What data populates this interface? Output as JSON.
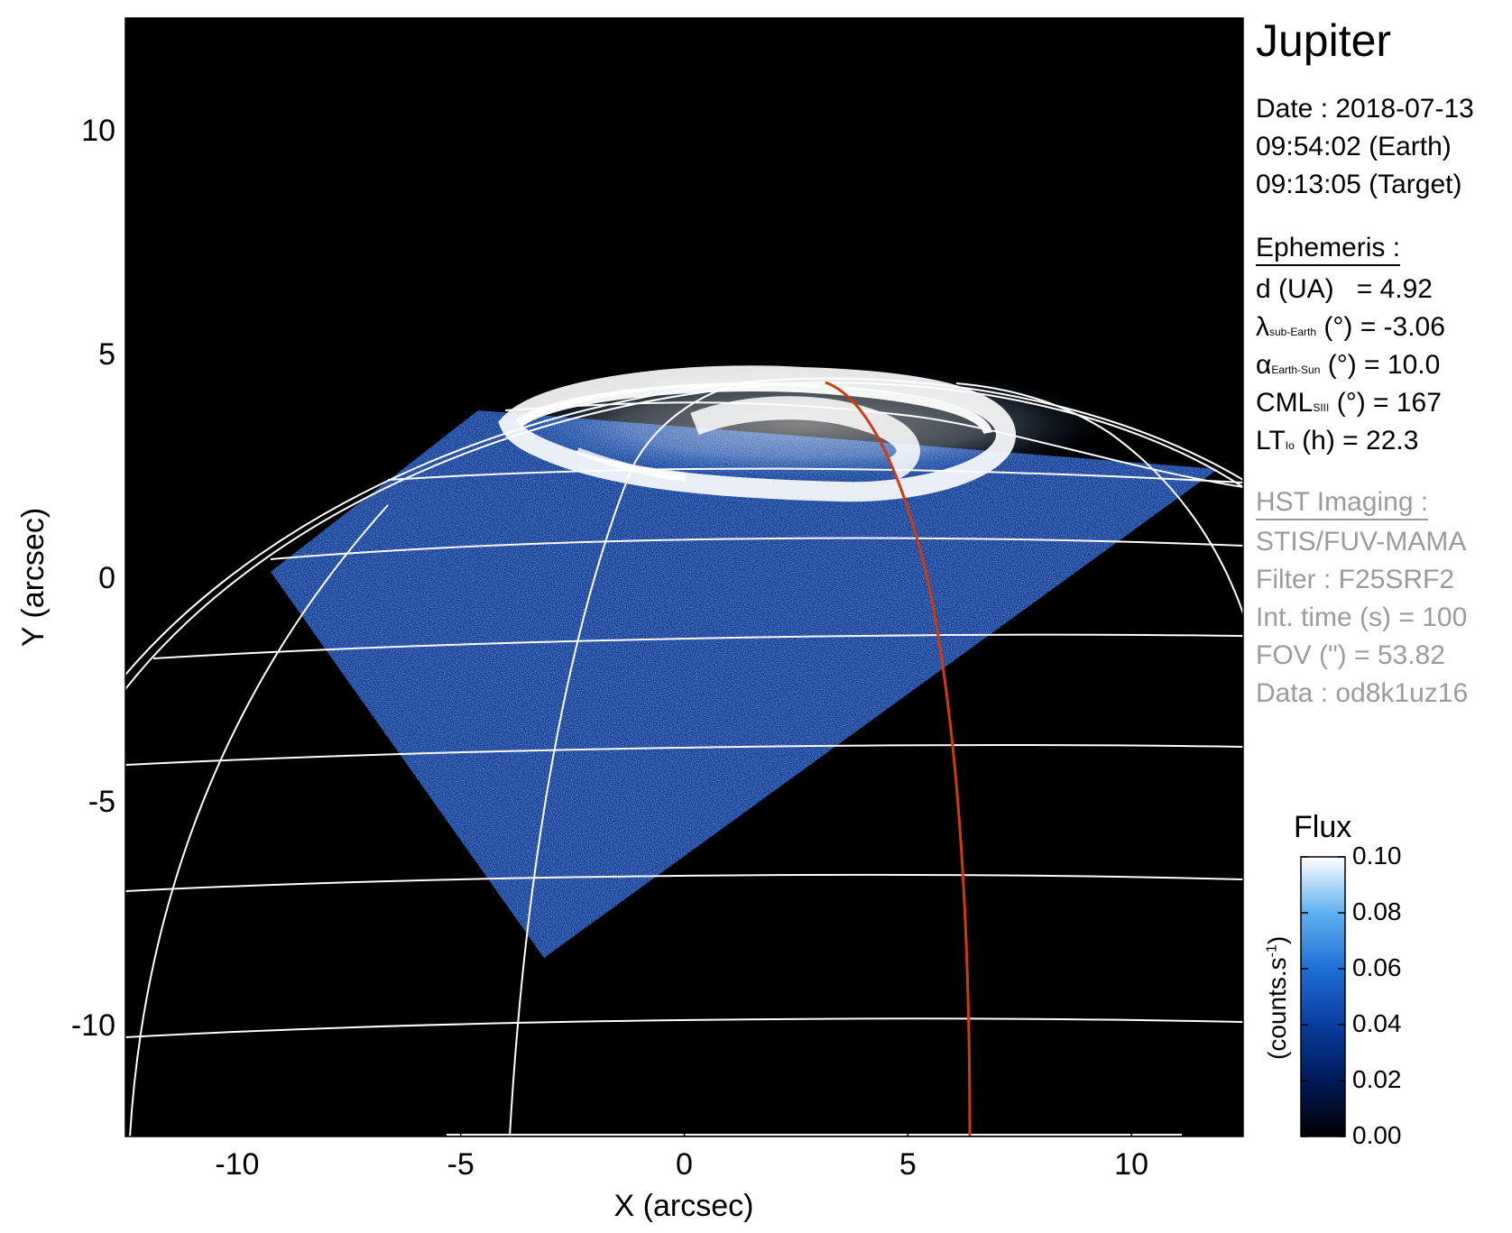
{
  "chart_data": {
    "type": "heatmap",
    "xlabel": "X (arcsec)",
    "ylabel": "Y (arcsec)",
    "xlim": [
      -12.5,
      12.5
    ],
    "ylim": [
      -12.5,
      12.5
    ],
    "xticks": [
      -10,
      -5,
      0,
      5,
      10
    ],
    "yticks": [
      -10,
      -5,
      0,
      5,
      10
    ],
    "xtick_labels": [
      "-10",
      "-5",
      "0",
      "5",
      "10"
    ],
    "ytick_labels": [
      "-10",
      "-5",
      "0",
      "5",
      "10"
    ],
    "colorbar": {
      "title": "Flux",
      "unit": "(counts.s",
      "unit_sup": "-1",
      "unit_close": ")",
      "range": [
        0.0,
        0.1
      ],
      "ticks": [
        0.0,
        0.02,
        0.04,
        0.06,
        0.08,
        0.1
      ],
      "tick_labels": [
        "0.00",
        "0.02",
        "0.04",
        "0.06",
        "0.08",
        "0.10"
      ],
      "colors": [
        "#000000",
        "#001a5a",
        "#0a3d9e",
        "#1f6fd6",
        "#5fb0f0",
        "#ffffff"
      ]
    },
    "colors": {
      "background": "#000000",
      "grid": "#ffffff",
      "meridian": "#d03a0c",
      "image_blue": "#1a4fb8",
      "aurora": "#ffffff"
    }
  },
  "panel": {
    "title": "Jupiter",
    "date_line": "Date : 2018-07-13",
    "earth_time": "09:54:02 (Earth)",
    "target_time": "09:13:05 (Target)",
    "ephemeris_heading": "Ephemeris :",
    "d_label": "d (UA)",
    "d_value": "= 4.92",
    "lambda_symbol": "λ",
    "lambda_sub": "sub-Earth",
    "lambda_value": "(°) = -3.06",
    "alpha_symbol": "α",
    "alpha_sub": "Earth-Sun",
    "alpha_value": "(°) = 10.0",
    "cml_symbol": "CML",
    "cml_sub": "SIII",
    "cml_value": "(°) = 167",
    "lt_symbol": "LT",
    "lt_sub": "Io",
    "lt_value": "(h) = 22.3",
    "hst_heading": "HST Imaging :",
    "instrument": "STIS/FUV-MAMA",
    "filter": "Filter : F25SRF2",
    "int_time": "Int. time (s) = 100",
    "fov": "FOV (\") = 53.82",
    "data_id": "Data : od8k1uz16"
  }
}
